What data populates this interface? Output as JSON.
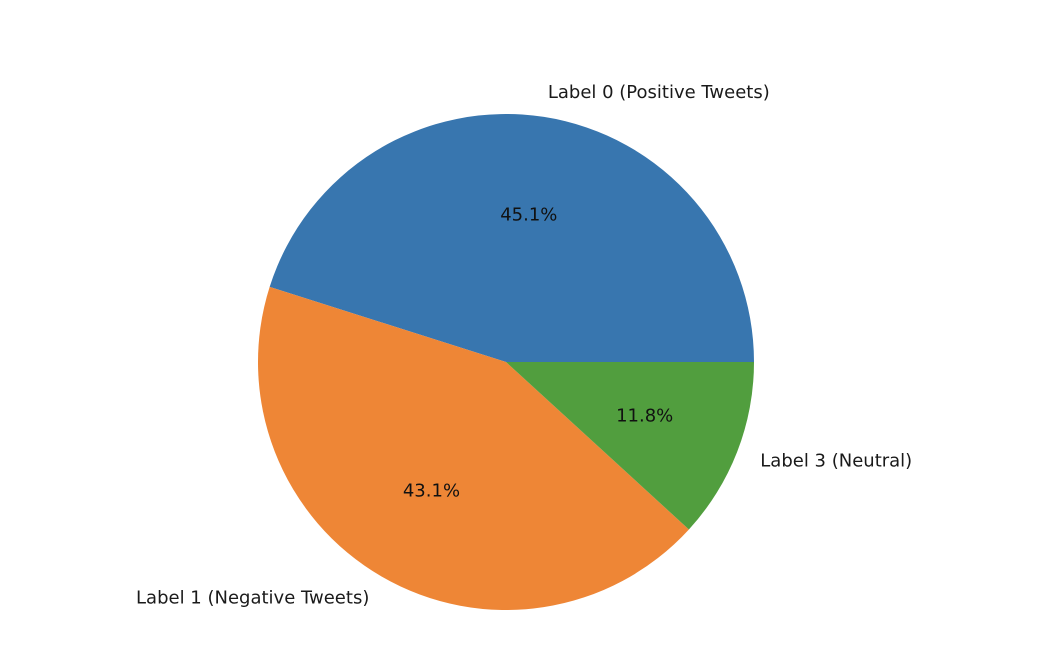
{
  "chart_data": {
    "type": "pie",
    "title": "",
    "start_angle_deg": 0,
    "direction": "counterclockwise",
    "slices": [
      {
        "label": "Label 0 (Positive Tweets)",
        "value": 45.1,
        "pct_text": "45.1%",
        "color": "#3876af"
      },
      {
        "label": "Label 1 (Negative Tweets)",
        "value": 43.1,
        "pct_text": "43.1%",
        "color": "#ee8636"
      },
      {
        "label": "Label 3 (Neutral)",
        "value": 11.8,
        "pct_text": "11.8%",
        "color": "#519e3e"
      }
    ]
  }
}
